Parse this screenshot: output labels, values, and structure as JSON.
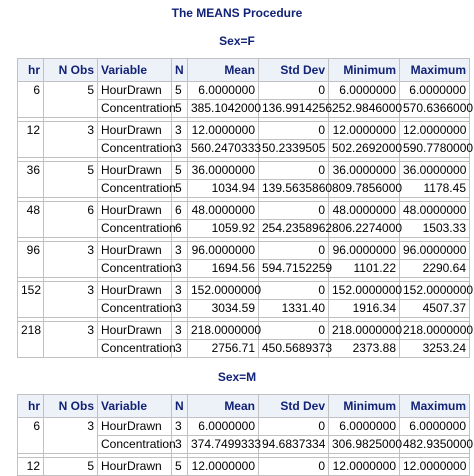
{
  "procedure_title": "The MEANS Procedure",
  "columns": {
    "hr": "hr",
    "nobs": "N Obs",
    "variable": "Variable",
    "n": "N",
    "mean": "Mean",
    "std": "Std Dev",
    "min": "Minimum",
    "max": "Maximum"
  },
  "groups": [
    {
      "title": "Sex=F",
      "rows": [
        {
          "hr": "6",
          "nobs": "5",
          "stats": [
            {
              "variable": "HourDrawn",
              "n": "5",
              "mean": "6.0000000",
              "std": "0",
              "min": "6.0000000",
              "max": "6.0000000"
            },
            {
              "variable": "Concentration",
              "n": "5",
              "mean": "385.1042000",
              "std": "136.9914256",
              "min": "252.9846000",
              "max": "570.6366000"
            }
          ]
        },
        {
          "hr": "12",
          "nobs": "3",
          "stats": [
            {
              "variable": "HourDrawn",
              "n": "3",
              "mean": "12.0000000",
              "std": "0",
              "min": "12.0000000",
              "max": "12.0000000"
            },
            {
              "variable": "Concentration",
              "n": "3",
              "mean": "560.2470333",
              "std": "50.2339505",
              "min": "502.2692000",
              "max": "590.7780000"
            }
          ]
        },
        {
          "hr": "36",
          "nobs": "5",
          "stats": [
            {
              "variable": "HourDrawn",
              "n": "5",
              "mean": "36.0000000",
              "std": "0",
              "min": "36.0000000",
              "max": "36.0000000"
            },
            {
              "variable": "Concentration",
              "n": "5",
              "mean": "1034.94",
              "std": "139.5635860",
              "min": "809.7856000",
              "max": "1178.45"
            }
          ]
        },
        {
          "hr": "48",
          "nobs": "6",
          "stats": [
            {
              "variable": "HourDrawn",
              "n": "6",
              "mean": "48.0000000",
              "std": "0",
              "min": "48.0000000",
              "max": "48.0000000"
            },
            {
              "variable": "Concentration",
              "n": "6",
              "mean": "1059.92",
              "std": "254.2358962",
              "min": "806.2274000",
              "max": "1503.33"
            }
          ]
        },
        {
          "hr": "96",
          "nobs": "3",
          "stats": [
            {
              "variable": "HourDrawn",
              "n": "3",
              "mean": "96.0000000",
              "std": "0",
              "min": "96.0000000",
              "max": "96.0000000"
            },
            {
              "variable": "Concentration",
              "n": "3",
              "mean": "1694.56",
              "std": "594.7152259",
              "min": "1101.22",
              "max": "2290.64"
            }
          ]
        },
        {
          "hr": "152",
          "nobs": "3",
          "stats": [
            {
              "variable": "HourDrawn",
              "n": "3",
              "mean": "152.0000000",
              "std": "0",
              "min": "152.0000000",
              "max": "152.0000000"
            },
            {
              "variable": "Concentration",
              "n": "3",
              "mean": "3034.59",
              "std": "1331.40",
              "min": "1916.34",
              "max": "4507.37"
            }
          ]
        },
        {
          "hr": "218",
          "nobs": "3",
          "stats": [
            {
              "variable": "HourDrawn",
              "n": "3",
              "mean": "218.0000000",
              "std": "0",
              "min": "218.0000000",
              "max": "218.0000000"
            },
            {
              "variable": "Concentration",
              "n": "3",
              "mean": "2756.71",
              "std": "450.5689373",
              "min": "2373.88",
              "max": "3253.24"
            }
          ]
        }
      ]
    },
    {
      "title": "Sex=M",
      "rows": [
        {
          "hr": "6",
          "nobs": "3",
          "stats": [
            {
              "variable": "HourDrawn",
              "n": "3",
              "mean": "6.0000000",
              "std": "0",
              "min": "6.0000000",
              "max": "6.0000000"
            },
            {
              "variable": "Concentration",
              "n": "3",
              "mean": "374.7499333",
              "std": "94.6837334",
              "min": "306.9825000",
              "max": "482.9350000"
            }
          ]
        },
        {
          "hr": "12",
          "nobs": "5",
          "stats": [
            {
              "variable": "HourDrawn",
              "n": "5",
              "mean": "12.0000000",
              "std": "0",
              "min": "12.0000000",
              "max": "12.0000000"
            }
          ]
        }
      ]
    }
  ]
}
